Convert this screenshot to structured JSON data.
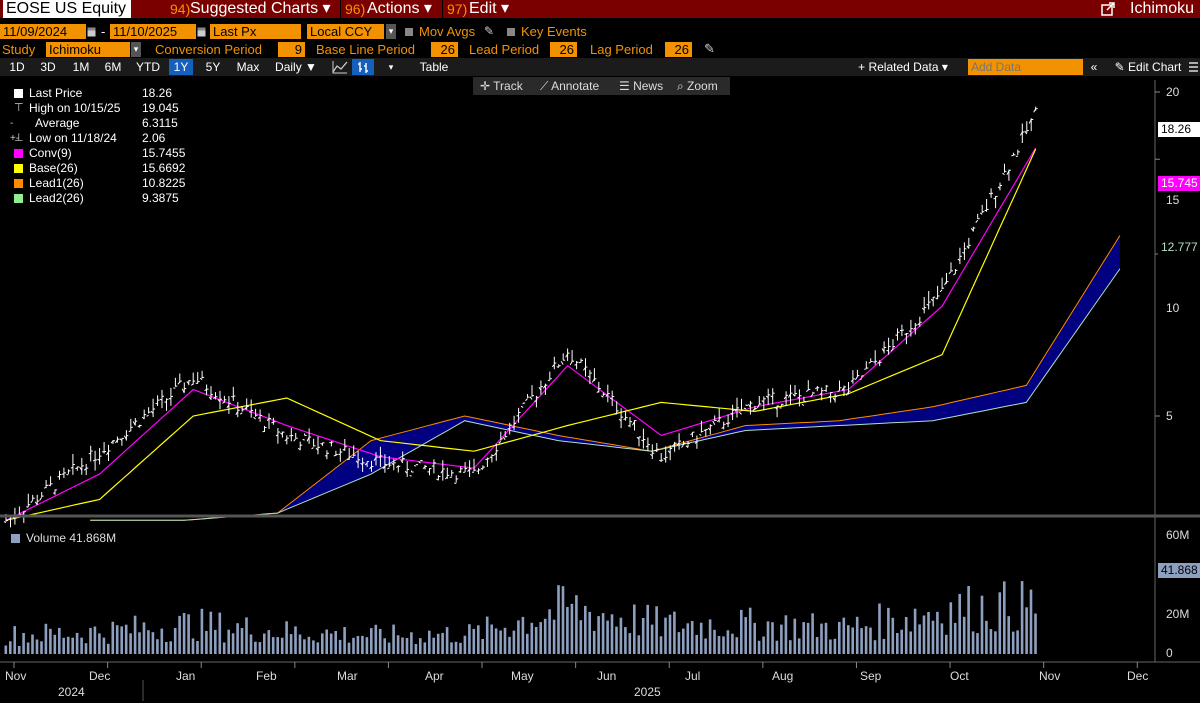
{
  "header": {
    "ticker": "EOSE US Equity",
    "menus": [
      {
        "num": "94)",
        "label": "Suggested Charts ▾"
      },
      {
        "num": "96)",
        "label": "Actions ▾"
      },
      {
        "num": "97)",
        "label": "Edit ▾"
      }
    ],
    "right_title": "Ichimoku"
  },
  "controls": {
    "start_date": "11/09/2024",
    "end_date": "11/10/2025",
    "date_sep": "-",
    "field": "Last Px",
    "currency": "Local CCY",
    "mov_avgs": "Mov Avgs",
    "key_events": "Key Events",
    "study_label": "Study",
    "study": "Ichimoku",
    "conv_label": "Conversion Period",
    "conv": "9",
    "base_label": "Base Line Period",
    "base": "26",
    "lead_label": "Lead Period",
    "lead": "26",
    "lag_label": "Lag Period",
    "lag": "26"
  },
  "range_buttons": [
    "1D",
    "3D",
    "1M",
    "6M",
    "YTD",
    "1Y",
    "5Y",
    "Max"
  ],
  "selected_range": "1Y",
  "toolbar": {
    "periodicity": "Daily ▼",
    "table": "Table",
    "related": "+ Related Data ▾",
    "add_data_placeholder": "Add Data",
    "edit_chart": "✎ Edit Chart"
  },
  "chart_tools": [
    "✛ Track",
    "⟋ Annotate",
    "☰ News",
    "⌕ Zoom"
  ],
  "legend": [
    {
      "name": "Last Price",
      "value": "18.26",
      "color": "#ffffff"
    },
    {
      "name": "High on 10/15/25",
      "value": "19.045",
      "color": "",
      "icon": "⊤"
    },
    {
      "name": "Average",
      "value": "6.3115",
      "color": "",
      "icon": "-+-"
    },
    {
      "name": "Low on 11/18/24",
      "value": "2.06",
      "color": "",
      "icon": "⊥"
    },
    {
      "name": "Conv(9)",
      "value": "15.7455",
      "color": "#ff00ff"
    },
    {
      "name": "Base(26)",
      "value": "15.6692",
      "color": "#ffff00"
    },
    {
      "name": "Lead1(26)",
      "value": "10.8225",
      "color": "#ff8c00"
    },
    {
      "name": "Lead2(26)",
      "value": "9.3875",
      "color": "#90ee90"
    }
  ],
  "price_axis": {
    "ticks": [
      "20",
      "15",
      "10",
      "5"
    ],
    "last_badge": "18.26",
    "conv_badge": "15.745",
    "lead_badge": "12.777"
  },
  "volume": {
    "label": "Volume 41.868M",
    "ticks": [
      "60M",
      "20M",
      "0"
    ],
    "badge": "41.868"
  },
  "x_axis": {
    "months": [
      "Nov",
      "Dec",
      "Jan",
      "Feb",
      "Mar",
      "Apr",
      "May",
      "Jun",
      "Jul",
      "Aug",
      "Sep",
      "Oct",
      "Nov",
      "Dec"
    ],
    "years": [
      "2024",
      "2025"
    ]
  },
  "colors": {
    "title_bar": "#7a0000",
    "orange": "#f39200",
    "price": "#ffffff",
    "conv": "#ff00ff",
    "base": "#ffff00",
    "lead1": "#ff8c00",
    "lead2": "#b0e0c0",
    "cloud": "#000080",
    "volume": "#8ea0c0"
  },
  "chart_data": [
    {
      "type": "line",
      "title": "",
      "x": [
        "Nov 2024",
        "Dec 2024",
        "Jan 2025",
        "Feb 2025",
        "Mar 2025",
        "Apr 2025",
        "May 2025",
        "Jun 2025",
        "Jul 2025",
        "Aug 2025",
        "Sep 2025",
        "Oct 2025"
      ],
      "series": [
        {
          "name": "Last Price",
          "values": [
            3.2,
            4.3,
            5.9,
            4.6,
            4.1,
            3.9,
            6.6,
            4.2,
            5.3,
            5.6,
            8.5,
            18.26
          ]
        },
        {
          "name": "Conv(9)",
          "values": [
            3.2,
            3.9,
            5.6,
            4.8,
            4.2,
            4.0,
            6.2,
            4.6,
            5.2,
            5.6,
            8.0,
            15.7455
          ]
        },
        {
          "name": "Base(26)",
          "values": [
            3.2,
            3.5,
            5.0,
            5.4,
            4.5,
            4.3,
            4.8,
            5.3,
            5.1,
            5.5,
            6.5,
            15.6692
          ]
        },
        {
          "name": "Lead1(26)",
          "values": [
            3.2,
            3.2,
            3.3,
            4.5,
            5.0,
            4.6,
            4.3,
            4.8,
            4.9,
            5.2,
            5.7,
            10.8225
          ]
        },
        {
          "name": "Lead2(26)",
          "values": [
            3.2,
            3.2,
            3.3,
            3.9,
            4.9,
            4.5,
            4.3,
            4.7,
            4.8,
            4.9,
            5.3,
            9.3875
          ]
        }
      ],
      "ylim": [
        2,
        20.5
      ],
      "scale": "log",
      "high": 19.045,
      "low": 2.06,
      "average": 6.3115
    },
    {
      "type": "bar",
      "title": "Volume",
      "x": [
        "Nov 2024",
        "Dec 2024",
        "Jan 2025",
        "Feb 2025",
        "Mar 2025",
        "Apr 2025",
        "May 2025",
        "Jun 2025",
        "Jul 2025",
        "Aug 2025",
        "Sep 2025",
        "Oct 2025"
      ],
      "series": [
        {
          "name": "Volume",
          "values": [
            10,
            12,
            16,
            12,
            10,
            11,
            25,
            16,
            16,
            14,
            24,
            26
          ]
        }
      ],
      "unit": "M",
      "ylim": [
        0,
        62
      ],
      "last": 41.868
    }
  ]
}
